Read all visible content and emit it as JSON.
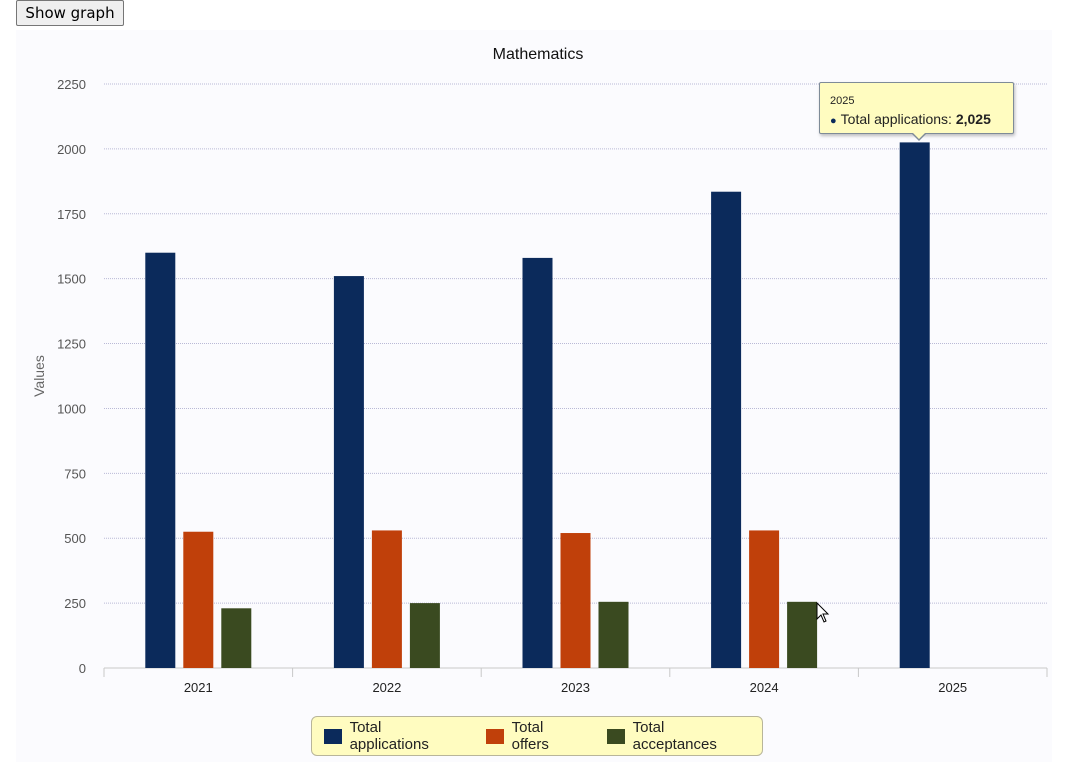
{
  "toolbar": {
    "show_graph_label": "Show graph"
  },
  "chart_data": {
    "type": "bar",
    "title": "Mathematics",
    "xlabel": "",
    "ylabel": "Values",
    "categories": [
      "2021",
      "2022",
      "2023",
      "2024",
      "2025"
    ],
    "series": [
      {
        "name": "Total applications",
        "color": "#0b2a5b",
        "values": [
          1600,
          1510,
          1580,
          1835,
          2025
        ]
      },
      {
        "name": "Total offers",
        "color": "#c0400a",
        "values": [
          525,
          530,
          520,
          530,
          null
        ]
      },
      {
        "name": "Total acceptances",
        "color": "#3a4a20",
        "values": [
          230,
          250,
          255,
          255,
          null
        ]
      }
    ],
    "ylim": [
      0,
      2250
    ],
    "yticks": [
      "0",
      "250",
      "500",
      "750",
      "1000",
      "1250",
      "1500",
      "1750",
      "2000",
      "2250"
    ],
    "grid": true,
    "legend_position": "bottom"
  },
  "tooltip": {
    "year": "2025",
    "series_label": "Total applications:",
    "value": "2,025"
  }
}
